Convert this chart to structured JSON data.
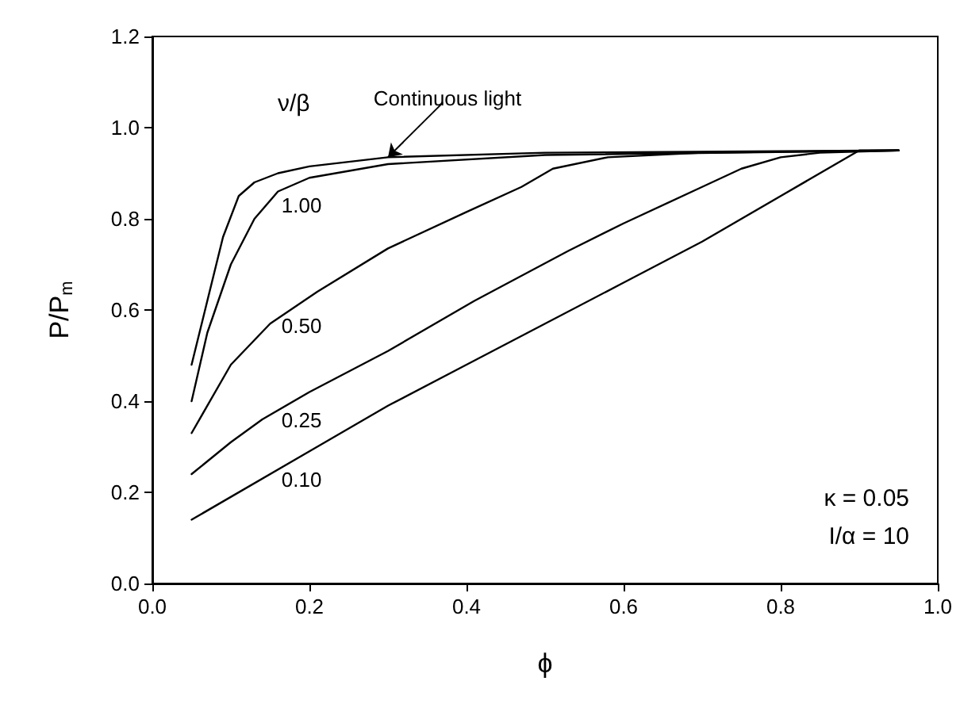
{
  "chart_data": {
    "type": "line",
    "xlabel": "ϕ",
    "ylabel": "P/P$_{m}$",
    "xlim": [
      0,
      1
    ],
    "xticks": [
      {
        "value": 0,
        "label": "0.0"
      },
      {
        "value": 0.2,
        "label": "0.2"
      },
      {
        "value": 0.4,
        "label": "0.4"
      },
      {
        "value": 0.6,
        "label": "0.6"
      },
      {
        "value": 0.8,
        "label": "0.8"
      },
      {
        "value": 1,
        "label": "1.0"
      }
    ],
    "ylim": [
      0,
      1.2
    ],
    "yticks": [
      {
        "value": 0,
        "label": "0.0"
      },
      {
        "value": 0.2,
        "label": "0.2"
      },
      {
        "value": 0.4,
        "label": "0.4"
      },
      {
        "value": 0.6,
        "label": "0.6"
      },
      {
        "value": 0.8,
        "label": "0.8"
      },
      {
        "value": 1,
        "label": "1.0"
      },
      {
        "value": 1.2,
        "label": "1.2"
      }
    ],
    "grid": false,
    "legend": false,
    "marker": "none",
    "line_style": "solid",
    "series": [
      {
        "name": "Continuous light",
        "color": "#000000",
        "x": [
          0.05,
          0.07,
          0.09,
          0.11,
          0.13,
          0.16,
          0.2,
          0.3,
          0.5,
          0.95
        ],
        "values": [
          0.48,
          0.62,
          0.76,
          0.85,
          0.88,
          0.9,
          0.915,
          0.935,
          0.945,
          0.95
        ]
      },
      {
        "name": "1.00",
        "color": "#000000",
        "x": [
          0.05,
          0.07,
          0.1,
          0.13,
          0.16,
          0.2,
          0.3,
          0.5,
          0.95
        ],
        "values": [
          0.4,
          0.55,
          0.7,
          0.8,
          0.86,
          0.89,
          0.92,
          0.94,
          0.95
        ]
      },
      {
        "name": "0.50",
        "color": "#000000",
        "x": [
          0.05,
          0.1,
          0.15,
          0.21,
          0.3,
          0.4,
          0.47,
          0.51,
          0.58,
          0.7,
          0.95
        ],
        "values": [
          0.33,
          0.48,
          0.57,
          0.64,
          0.735,
          0.815,
          0.87,
          0.91,
          0.935,
          0.945,
          0.95
        ]
      },
      {
        "name": "0.25",
        "color": "#000000",
        "x": [
          0.05,
          0.1,
          0.14,
          0.2,
          0.3,
          0.41,
          0.53,
          0.6,
          0.7,
          0.75,
          0.8,
          0.85,
          0.95
        ],
        "values": [
          0.24,
          0.31,
          0.36,
          0.42,
          0.51,
          0.62,
          0.73,
          0.79,
          0.87,
          0.91,
          0.935,
          0.945,
          0.95
        ]
      },
      {
        "name": "0.10",
        "color": "#000000",
        "x": [
          0.05,
          0.2,
          0.3,
          0.4,
          0.5,
          0.6,
          0.7,
          0.8,
          0.9,
          0.95
        ],
        "values": [
          0.14,
          0.29,
          0.39,
          0.48,
          0.57,
          0.66,
          0.75,
          0.85,
          0.95,
          0.95
        ]
      }
    ],
    "annotations": [
      "ν/β",
      "κ = 0.05",
      "I/α = 10"
    ]
  }
}
